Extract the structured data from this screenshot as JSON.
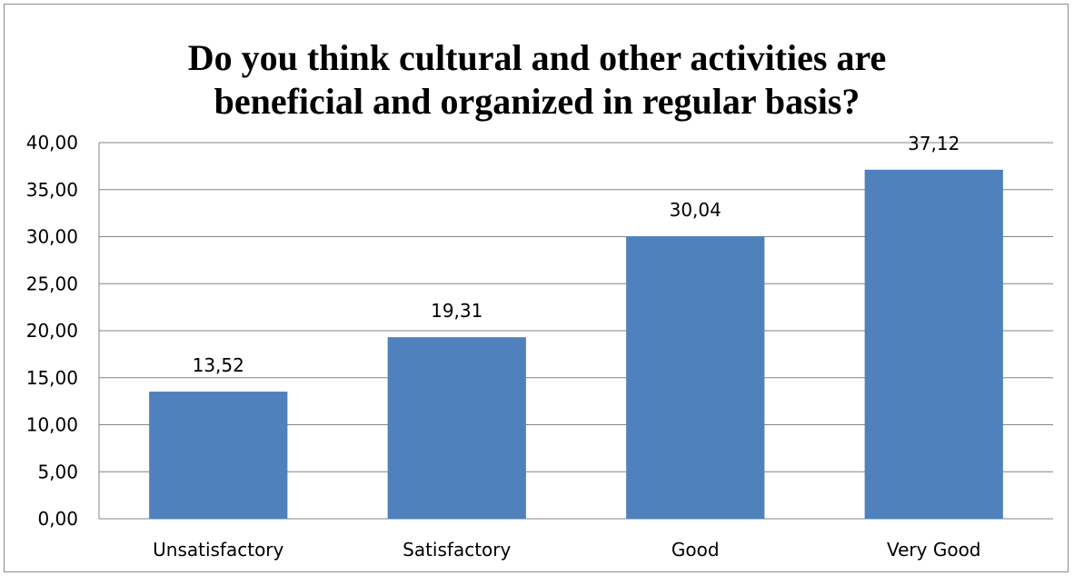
{
  "chart_data": {
    "type": "bar",
    "title": "Do you think cultural and other activities are\nbeneficial and organized in regular basis?",
    "categories": [
      "Unsatisfactory",
      "Satisfactory",
      "Good",
      "Very Good"
    ],
    "values": [
      13.52,
      19.31,
      30.04,
      37.12
    ],
    "value_labels": [
      "13,52",
      "19,31",
      "30,04",
      "37,12"
    ],
    "y_ticks": [
      "0,00",
      "5,00",
      "10,00",
      "15,00",
      "20,00",
      "25,00",
      "30,00",
      "35,00",
      "40,00"
    ],
    "ylim": [
      0,
      40
    ],
    "y_step": 5,
    "grid": true,
    "legend": "none",
    "bar_color": "#4f81bd",
    "gridline_color": "#868686"
  }
}
